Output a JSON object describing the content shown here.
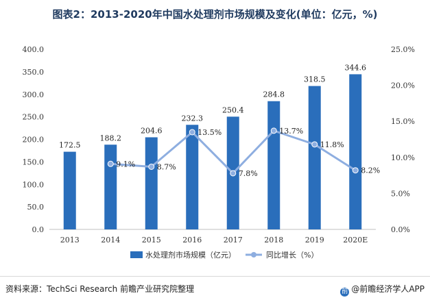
{
  "title": "图表2：2013-2020年中国水处理剂市场规模及变化(单位：亿元，%)",
  "footer": {
    "source": "资料来源：TechSci Research 前瞻产业研究院整理",
    "brand": "@前瞻经济学人APP"
  },
  "chart_data": {
    "type": "bar",
    "categories": [
      "2013",
      "2014",
      "2015",
      "2016",
      "2017",
      "2018",
      "2019",
      "2020E"
    ],
    "series": [
      {
        "name": "水处理剂市场规模（亿元）",
        "type": "bar",
        "axis": "left",
        "values": [
          172.5,
          188.2,
          204.6,
          232.3,
          250.4,
          284.8,
          318.5,
          344.6
        ],
        "labels": [
          "172.5",
          "188.2",
          "204.6",
          "232.3",
          "250.4",
          "284.8",
          "318.5",
          "344.6"
        ],
        "color": "#2a6ebb"
      },
      {
        "name": "同比增长（%）",
        "type": "line",
        "axis": "right",
        "values": [
          null,
          9.1,
          8.7,
          13.5,
          7.8,
          13.7,
          11.8,
          8.2
        ],
        "labels": [
          "",
          "9.1%",
          "8.7%",
          "13.5%",
          "7.8%",
          "13.7%",
          "11.8%",
          "8.2%"
        ],
        "color": "#8eaee0"
      }
    ],
    "left_axis": {
      "ylim": [
        0,
        400
      ],
      "ticks": [
        0,
        50,
        100,
        150,
        200,
        250,
        300,
        350,
        400
      ],
      "tick_labels": [
        "0.0",
        "50.0",
        "100.0",
        "150.0",
        "200.0",
        "250.0",
        "300.0",
        "350.0",
        "400.0"
      ]
    },
    "right_axis": {
      "ylim": [
        0,
        25
      ],
      "ticks": [
        0,
        5,
        10,
        15,
        20,
        25
      ],
      "tick_labels": [
        "0.0%",
        "5.0%",
        "10.0%",
        "15.0%",
        "20.0%",
        "25.0%"
      ]
    },
    "grid": false,
    "legend": "bottom-center"
  }
}
